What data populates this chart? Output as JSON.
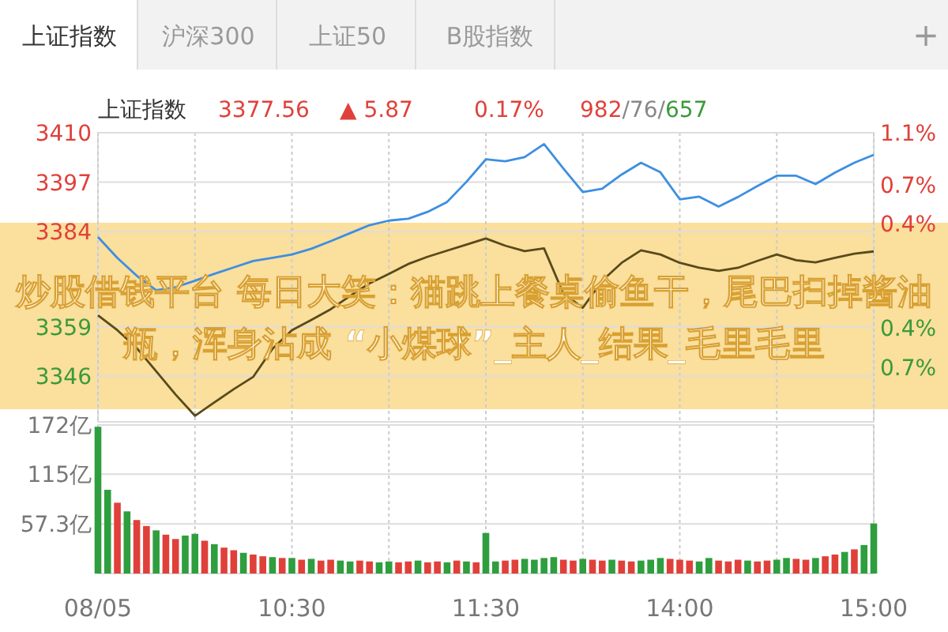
{
  "chart_data": [
    {
      "type": "line",
      "title": "上证指数",
      "annotations": [
        "上证指数",
        "沪深300",
        "上证50",
        "B股指数",
        "+",
        "3377.56",
        "▲ 5.87",
        "0.17%",
        "982/76/657",
        "炒股借钱平台 每日大笑：猫跳上餐桌偷鱼干，尾巴扫掉酱油瓶，浑身沾成 “小煤球”_主人_结果_毛里毛里"
      ],
      "categories": [
        null,
        null,
        null,
        null,
        null,
        null,
        null,
        null,
        null,
        null,
        null,
        null,
        null,
        null,
        null,
        null,
        null,
        null,
        null,
        null,
        null,
        null,
        null,
        null,
        null,
        null,
        null,
        null,
        null,
        null,
        null,
        null,
        null,
        null,
        null,
        null,
        null,
        null,
        null,
        null,
        null
      ],
      "series": [
        {
          "color": "#3d8fe0",
          "values": [
            3382.6,
            3377.1,
            3372.4,
            3368.6,
            3369.4,
            3371.1,
            3372.9,
            3374.6,
            3376.3,
            3377.1,
            3378,
            3379.5,
            3381.5,
            3383.6,
            3385.7,
            3386.9,
            3387.4,
            3389.2,
            3391.8,
            3397.1,
            3403,
            3402.5,
            3403.6,
            3407,
            3400.6,
            3394.4,
            3395.3,
            3399,
            3402.1,
            3399.6,
            3392.5,
            3393.2,
            3390.6,
            3393.1,
            3396,
            3398.7,
            3398.7,
            3396.5,
            3399.5,
            3402.1,
            3404.2
          ]
        },
        {
          "color": "#5a4a1a",
          "values": [
            3362,
            3358.1,
            3353.4,
            3347.3,
            3341.2,
            3335.6,
            3339.1,
            3342.6,
            3345.8,
            3353.2,
            3358.1,
            3360.8,
            3363.6,
            3367.1,
            3370.4,
            3372.9,
            3375.5,
            3377.4,
            3379,
            3380.6,
            3382.2,
            3380.3,
            3378.9,
            3379.6,
            3367.7,
            3364,
            3371.1,
            3375.8,
            3379.1,
            3378,
            3375.8,
            3374.5,
            3373.7,
            3374.5,
            3376.3,
            3378,
            3376.5,
            3375.9,
            3377.1,
            3378.2,
            3378.8
          ]
        }
      ],
      "ylim": [
        3334,
        3410
      ],
      "yticks": [
        3410,
        3397,
        3384,
        3359,
        3346
      ],
      "y2lim": [
        -1.12,
        1.1
      ],
      "y2ticks": [
        {
          "value": 1.1,
          "label": "1.1%"
        },
        {
          "value": 0.7,
          "label": "0.7%"
        },
        {
          "value": 0.4,
          "label": "0.4%"
        },
        {
          "value": -0.4,
          "label": "0.4%"
        },
        {
          "value": -0.7,
          "label": "0.7%"
        }
      ],
      "grid": true,
      "marker": "none",
      "line_style": "solid"
    },
    {
      "type": "bar",
      "categories": [
        "08/05",
        null,
        null,
        null,
        null,
        null,
        null,
        null,
        null,
        null,
        null,
        null,
        null,
        null,
        null,
        null,
        null,
        null,
        null,
        null,
        "10:30",
        null,
        null,
        null,
        null,
        null,
        null,
        null,
        null,
        null,
        null,
        null,
        null,
        null,
        null,
        null,
        null,
        null,
        null,
        null,
        "11:30",
        null,
        null,
        null,
        null,
        null,
        null,
        null,
        null,
        null,
        null,
        null,
        null,
        null,
        null,
        null,
        null,
        null,
        null,
        null,
        "14:00",
        null,
        null,
        null,
        null,
        null,
        null,
        null,
        null,
        null,
        null,
        null,
        null,
        null,
        null,
        null,
        null,
        null,
        null,
        null,
        "15:00"
      ],
      "values": [
        170,
        97,
        82,
        72,
        62,
        55,
        50,
        45,
        40,
        44,
        46,
        38,
        34,
        30,
        27,
        24,
        22,
        20,
        19,
        18,
        18,
        16,
        17,
        15,
        16,
        15,
        14,
        15,
        14,
        13,
        14,
        13,
        14,
        15,
        13,
        14,
        13,
        15,
        14,
        13,
        47,
        14,
        15,
        16,
        17,
        16,
        18,
        19,
        16,
        15,
        17,
        16,
        15,
        16,
        15,
        14,
        15,
        16,
        18,
        17,
        16,
        15,
        14,
        18,
        15,
        14,
        16,
        15,
        14,
        15,
        16,
        18,
        17,
        16,
        18,
        20,
        22,
        25,
        28,
        33,
        58
      ],
      "colors": [
        "#2e9e3e",
        "#2e9e3e",
        "#e0403a",
        "#2e9e3e",
        "#e0403a",
        "#e0403a",
        "#2e9e3e",
        "#e0403a",
        "#e0403a",
        "#2e9e3e",
        "#2e9e3e",
        "#e0403a",
        "#2e9e3e",
        "#e0403a",
        "#e0403a",
        "#2e9e3e",
        "#e0403a",
        "#e0403a",
        "#2e9e3e",
        "#e0403a",
        "#2e9e3e",
        "#e0403a",
        "#2e9e3e",
        "#e0403a",
        "#e0403a",
        "#2e9e3e",
        "#2e9e3e",
        "#e0403a",
        "#e0403a",
        "#2e9e3e",
        "#2e9e3e",
        "#e0403a",
        "#e0403a",
        "#2e9e3e",
        "#e0403a",
        "#e0403a",
        "#2e9e3e",
        "#e0403a",
        "#2e9e3e",
        "#e0403a",
        "#2e9e3e",
        "#2e9e3e",
        "#e0403a",
        "#e0403a",
        "#2e9e3e",
        "#2e9e3e",
        "#2e9e3e",
        "#2e9e3e",
        "#e0403a",
        "#e0403a",
        "#2e9e3e",
        "#e0403a",
        "#e0403a",
        "#2e9e3e",
        "#e0403a",
        "#e0403a",
        "#2e9e3e",
        "#2e9e3e",
        "#2e9e3e",
        "#e0403a",
        "#e0403a",
        "#e0403a",
        "#2e9e3e",
        "#2e9e3e",
        "#e0403a",
        "#e0403a",
        "#e0403a",
        "#2e9e3e",
        "#e0403a",
        "#e0403a",
        "#2e9e3e",
        "#2e9e3e",
        "#e0403a",
        "#e0403a",
        "#2e9e3e",
        "#e0403a",
        "#e0403a",
        "#2e9e3e",
        "#e0403a",
        "#2e9e3e",
        "#2e9e3e"
      ],
      "ylim": [
        0,
        172
      ],
      "yticks": [
        {
          "value": 57.3,
          "label": "57.3亿"
        },
        {
          "value": 115,
          "label": "115亿"
        },
        {
          "value": 172,
          "label": "172亿"
        }
      ],
      "grid": true
    }
  ]
}
